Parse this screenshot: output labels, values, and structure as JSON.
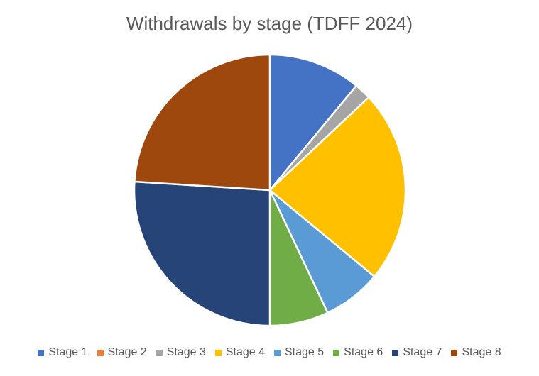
{
  "chart_data": {
    "type": "pie",
    "title": "Withdrawals by stage (TDFF 2024)",
    "categories": [
      "Stage 1",
      "Stage 2",
      "Stage 3",
      "Stage 4",
      "Stage 5",
      "Stage 6",
      "Stage 7",
      "Stage 8"
    ],
    "values": [
      11,
      0,
      2,
      23,
      7,
      7,
      26,
      24
    ],
    "colors": [
      "#4472C4",
      "#ED7D31",
      "#A5A5A5",
      "#FFC000",
      "#5B9BD5",
      "#70AD47",
      "#264478",
      "#9E480E"
    ],
    "legend_position": "bottom"
  }
}
